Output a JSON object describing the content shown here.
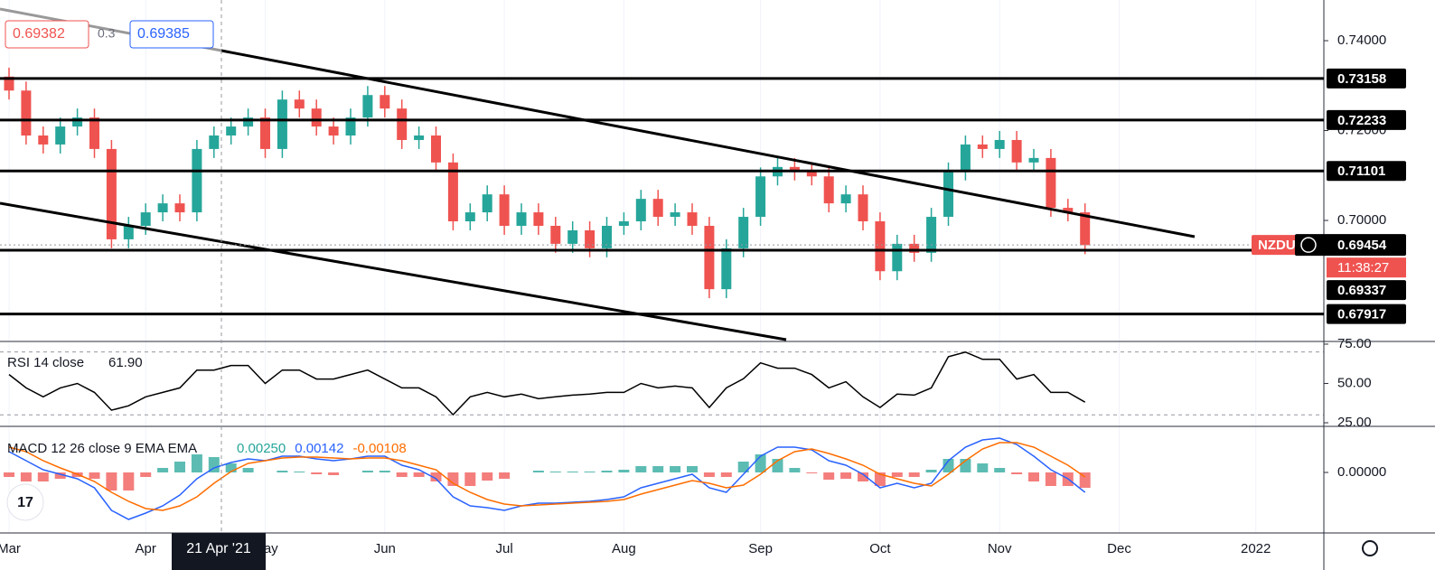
{
  "chart_data": [
    {
      "type": "candlestick",
      "categories": [
        "Mar",
        null,
        null,
        null,
        null,
        null,
        null,
        null,
        "Apr",
        null,
        null,
        null,
        null,
        null,
        null,
        "May",
        null,
        null,
        null,
        null,
        null,
        null,
        "Jun",
        null,
        null,
        null,
        null,
        null,
        null,
        "Jul",
        null,
        null,
        null,
        null,
        null,
        null,
        "Aug",
        null,
        null,
        null,
        null,
        null,
        null,
        null,
        "Sep",
        null,
        null,
        null,
        null,
        null,
        null,
        "Oct",
        null,
        null,
        null,
        null,
        null,
        null,
        "Nov",
        null,
        null,
        null,
        null,
        null,
        null,
        "Dec",
        null,
        null,
        null,
        null,
        null,
        null,
        null,
        "2022"
      ],
      "open": [
        0.732,
        0.7289,
        0.7189,
        0.7169,
        0.7209,
        0.7229,
        0.7159,
        0.6958,
        0.6988,
        0.7018,
        0.7038,
        0.7018,
        0.7159,
        0.7189,
        0.7209,
        0.7229,
        0.7159,
        0.7269,
        0.7249,
        0.7209,
        0.7189,
        0.7229,
        0.7279,
        0.7249,
        0.7179,
        0.7189,
        0.7129,
        0.6998,
        0.7018,
        0.7058,
        0.6988,
        0.7018,
        0.6988,
        0.6948,
        0.6978,
        0.6938,
        0.6988,
        0.6998,
        0.7048,
        0.7008,
        0.7018,
        0.6988,
        0.6847,
        0.6938,
        0.7008,
        0.7098,
        0.7119,
        0.7109,
        0.7098,
        0.7038,
        0.7058,
        0.6998,
        0.6887,
        0.6948,
        0.6928,
        0.7008,
        0.7109,
        0.7169,
        0.7159,
        0.7179,
        0.7129,
        0.7139,
        0.7028,
        0.7018,
        null,
        null,
        null,
        null,
        null,
        null,
        null,
        null,
        null,
        null
      ],
      "high": [
        0.734,
        0.7309,
        0.7209,
        0.7229,
        0.7249,
        0.7249,
        0.7179,
        0.7008,
        0.7038,
        0.7058,
        0.7058,
        0.7179,
        0.7209,
        0.7229,
        0.7249,
        0.7249,
        0.7289,
        0.7289,
        0.7269,
        0.7229,
        0.7249,
        0.7299,
        0.7299,
        0.7269,
        0.7209,
        0.7209,
        0.7149,
        0.7038,
        0.7078,
        0.7078,
        0.7038,
        0.7038,
        0.7008,
        0.6998,
        0.6998,
        0.7008,
        0.7018,
        0.7068,
        0.7068,
        0.7038,
        0.7038,
        0.7008,
        0.6958,
        0.7028,
        0.7118,
        0.7139,
        0.7139,
        0.7129,
        0.7118,
        0.7078,
        0.7078,
        0.7018,
        0.6968,
        0.6968,
        0.7028,
        0.7129,
        0.7189,
        0.7189,
        0.7199,
        0.7199,
        0.7159,
        0.7159,
        0.7048,
        0.7038,
        null,
        null,
        null,
        null,
        null,
        null,
        null,
        null,
        null,
        null
      ],
      "low": [
        0.7269,
        0.7169,
        0.7149,
        0.7149,
        0.7189,
        0.7139,
        0.6938,
        0.6938,
        0.6968,
        0.6998,
        0.6998,
        0.6998,
        0.7139,
        0.7169,
        0.7189,
        0.7139,
        0.7139,
        0.7229,
        0.7189,
        0.7169,
        0.7169,
        0.7209,
        0.7229,
        0.7159,
        0.7159,
        0.7109,
        0.6978,
        0.6978,
        0.6998,
        0.6968,
        0.6968,
        0.6968,
        0.6928,
        0.6928,
        0.6918,
        0.6918,
        0.6968,
        0.6978,
        0.6988,
        0.6988,
        0.6968,
        0.6827,
        0.6827,
        0.6918,
        0.6988,
        0.7078,
        0.7089,
        0.7078,
        0.7018,
        0.7018,
        0.6978,
        0.6867,
        0.6867,
        0.6908,
        0.6908,
        0.6988,
        0.7089,
        0.7139,
        0.7139,
        0.7109,
        0.7109,
        0.7008,
        0.6998,
        0.6925,
        null,
        null,
        null,
        null,
        null,
        null,
        null,
        null,
        null,
        null
      ],
      "close": [
        0.7289,
        0.7189,
        0.7169,
        0.7209,
        0.7229,
        0.7159,
        0.6958,
        0.6988,
        0.7018,
        0.7038,
        0.7018,
        0.7159,
        0.7189,
        0.7209,
        0.7229,
        0.7159,
        0.7269,
        0.7249,
        0.7209,
        0.7189,
        0.7229,
        0.7279,
        0.7249,
        0.7179,
        0.7189,
        0.7129,
        0.6998,
        0.7018,
        0.7058,
        0.6988,
        0.7018,
        0.6988,
        0.6948,
        0.6978,
        0.6938,
        0.6988,
        0.6998,
        0.7048,
        0.7008,
        0.7018,
        0.6988,
        0.6847,
        0.6938,
        0.7008,
        0.7098,
        0.7119,
        0.7109,
        0.7098,
        0.7038,
        0.7058,
        0.6998,
        0.6887,
        0.6948,
        0.6928,
        0.7008,
        0.7109,
        0.7169,
        0.7159,
        0.7179,
        0.7129,
        0.7139,
        0.7028,
        0.7018,
        0.6945,
        null,
        null,
        null,
        null,
        null,
        null,
        null,
        null,
        null,
        null
      ],
      "up_color": "#26a69a",
      "down_color": "#ef5350",
      "ylim": [
        0.67307,
        0.74905
      ],
      "yticks": [
        {
          "value": 0.74,
          "label": "0.74000"
        },
        {
          "value": 0.72,
          "label": "0.72000"
        },
        {
          "value": 0.7,
          "label": "0.70000"
        }
      ],
      "levels": [
        {
          "value": 0.73158,
          "label": "0.73158"
        },
        {
          "value": 0.72233,
          "label": "0.72233"
        },
        {
          "value": 0.71101,
          "label": "0.71101"
        },
        {
          "value": 0.69337,
          "label": "0.69337"
        },
        {
          "value": 0.67917,
          "label": "0.67917"
        }
      ],
      "last_price": {
        "value": 0.69454,
        "label": "0.69454"
      },
      "symbol_tag": "NZDU",
      "countdown": "11:38:27",
      "quote": {
        "bid": "0.69382",
        "spread": "0.3",
        "ask": "0.69385"
      },
      "crosshair_date": "21 Apr '21"
    },
    {
      "type": "line",
      "series": [
        {
          "name": "RSI 14 close",
          "readout": "61.90",
          "color": "#000000",
          "values": [
            55.7,
            47.2,
            41.5,
            47.2,
            50.0,
            44.3,
            33.0,
            35.8,
            41.5,
            44.3,
            47.2,
            58.5,
            58.5,
            61.4,
            61.4,
            50.0,
            58.5,
            58.5,
            52.8,
            52.8,
            55.7,
            58.5,
            52.8,
            47.2,
            47.2,
            41.5,
            30.1,
            41.5,
            44.3,
            41.5,
            43.2,
            40.3,
            41.5,
            42.6,
            43.2,
            44.3,
            44.3,
            50.0,
            47.2,
            48.3,
            47.2,
            34.7,
            47.2,
            53.0,
            63.1,
            59.7,
            59.7,
            55.7,
            47.2,
            51.1,
            41.5,
            34.7,
            43.2,
            42.6,
            47.2,
            67.0,
            69.9,
            65.3,
            65.3,
            52.8,
            55.7,
            44.3,
            44.3,
            38.1,
            null,
            null,
            null,
            null,
            null,
            null,
            null,
            null,
            null,
            null
          ]
        }
      ],
      "band_levels": [
        70,
        30
      ],
      "ylim": [
        22.7,
        76.7
      ],
      "yticks": [
        {
          "value": 75,
          "label": "75.00"
        },
        {
          "value": 50,
          "label": "50.00"
        },
        {
          "value": 25,
          "label": "25.00"
        }
      ]
    },
    {
      "type": "combo",
      "title": "MACD 12 26 close 9 EMA EMA",
      "series": [
        {
          "type": "bar",
          "readout": "0.00250",
          "color": "#26a69a",
          "negative_color": "#ef5350",
          "values": [
            -0.0015,
            -0.003,
            -0.003,
            -0.0021,
            -0.0015,
            -0.0021,
            -0.006,
            -0.006,
            -0.0015,
            0.0015,
            0.0036,
            0.006,
            0.0051,
            0.003,
            0.0015,
            0,
            0.0006,
            0.0003,
            -0.0006,
            -0.0009,
            0,
            0.0006,
            0.0006,
            -0.0015,
            -0.0015,
            -0.003,
            -0.0045,
            -0.0045,
            -0.0027,
            -0.0021,
            0,
            0.0006,
            0.0003,
            0.0003,
            0.0003,
            0.0006,
            0.0009,
            0.0021,
            0.0021,
            0.0021,
            0.0021,
            -0.0015,
            -0.0015,
            0.0036,
            0.006,
            0.0045,
            0.0015,
            -0.0003,
            -0.0024,
            -0.0021,
            -0.003,
            -0.0045,
            -0.0015,
            -0.0015,
            0.0009,
            0.0045,
            0.0045,
            0.003,
            0.0015,
            -0.0006,
            -0.003,
            -0.0045,
            -0.0045,
            -0.0051,
            null,
            null,
            null,
            null,
            null,
            null,
            null,
            null,
            null,
            null
          ]
        },
        {
          "type": "line",
          "readout": "0.00142",
          "color": "#2962ff",
          "values": [
            0.0069,
            0.0039,
            0.0009,
            -0.0006,
            -0.0021,
            -0.0051,
            -0.0126,
            -0.0156,
            -0.0135,
            -0.0111,
            -0.0075,
            -0.0021,
            0.0015,
            0.0033,
            0.0045,
            0.0039,
            0.0054,
            0.0054,
            0.0045,
            0.0039,
            0.0045,
            0.0054,
            0.0054,
            0.0024,
            0.0009,
            -0.0021,
            -0.0081,
            -0.0111,
            -0.0117,
            -0.0126,
            -0.0111,
            -0.0102,
            -0.0102,
            -0.0099,
            -0.0096,
            -0.009,
            -0.0081,
            -0.0051,
            -0.0036,
            -0.0021,
            -0.0006,
            -0.0051,
            -0.0066,
            -0.0006,
            0.0054,
            0.0084,
            0.0084,
            0.0075,
            0.0039,
            0.0024,
            -0.0006,
            -0.0051,
            -0.0036,
            -0.0051,
            -0.0036,
            0.0039,
            0.0084,
            0.0108,
            0.0114,
            0.0093,
            0.0054,
            0.0009,
            -0.0021,
            -0.0066,
            null,
            null,
            null,
            null,
            null,
            null,
            null,
            null,
            null,
            null
          ]
        },
        {
          "type": "line",
          "readout": "-0.00108",
          "color": "#ff6d00",
          "values": [
            0.0084,
            0.0069,
            0.0039,
            0.0015,
            -0.0006,
            -0.003,
            -0.0066,
            -0.0096,
            -0.012,
            -0.0126,
            -0.0111,
            -0.0081,
            -0.0036,
            0.0003,
            0.003,
            0.0039,
            0.0048,
            0.0051,
            0.0051,
            0.0048,
            0.0045,
            0.0048,
            0.0048,
            0.0039,
            0.0024,
            0.0009,
            -0.0036,
            -0.0066,
            -0.009,
            -0.0105,
            -0.0111,
            -0.0108,
            -0.0105,
            -0.0102,
            -0.0099,
            -0.0096,
            -0.009,
            -0.0072,
            -0.0057,
            -0.0042,
            -0.0027,
            -0.0036,
            -0.0051,
            -0.0042,
            -0.0006,
            0.0039,
            0.0069,
            0.0078,
            0.0063,
            0.0045,
            0.0024,
            -0.0006,
            -0.0021,
            -0.0036,
            -0.0045,
            -0.0006,
            0.0039,
            0.0078,
            0.0099,
            0.0099,
            0.0084,
            0.0054,
            0.0024,
            -0.0015,
            null,
            null,
            null,
            null,
            null,
            null,
            null,
            null,
            null,
            null
          ]
        }
      ],
      "ylim": [
        -0.0201,
        0.0153
      ],
      "yticks": [
        {
          "value": 0,
          "label": "0.00000"
        }
      ]
    }
  ]
}
